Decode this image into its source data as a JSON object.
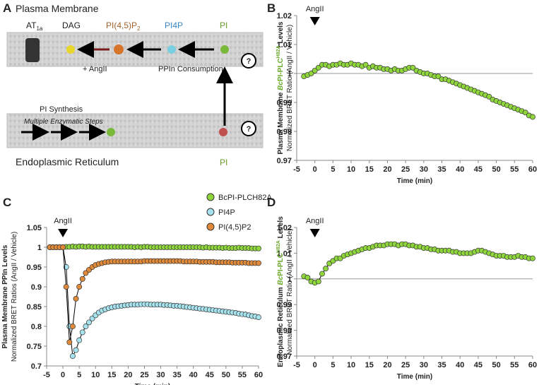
{
  "diagram": {
    "panel": "A",
    "pm": "Plasma Membrane",
    "at1a": [
      "AT",
      "1a"
    ],
    "dag": "DAG",
    "pip2": [
      "PI(4,5)P",
      "2"
    ],
    "pi4p": "PI4P",
    "pi_top": "PI",
    "angii": "+ AngII",
    "consumption": "PPIn Consumption",
    "synthesis": "PI Synthesis",
    "steps": "Multiple Enzymatic Steps",
    "er": "Endoplasmic Reticulum",
    "pi_bottom": "PI",
    "q1": "?",
    "q2": "?"
  },
  "chart_data": [
    {
      "type": "line",
      "panel": "B",
      "ylabel": [
        "Plasma Membrane ",
        "Bc",
        "PI-PLC",
        "H82A",
        " Levels"
      ],
      "ylabel2": "Normalized BRET Ratio (AngII / Vehicle)",
      "xlabel": "Time (min)",
      "annotation": {
        "text": "AngII",
        "x": 0
      },
      "hline": 1,
      "xlim": [
        -5,
        60
      ],
      "xticks": [
        -5,
        0,
        5,
        10,
        15,
        20,
        25,
        30,
        35,
        40,
        45,
        50,
        55,
        60
      ],
      "ylim": [
        0.97,
        1.02
      ],
      "yticks": [
        0.97,
        0.98,
        0.99,
        1,
        1.01,
        1.02
      ],
      "color": "#8ed63c",
      "x": [
        -3,
        -2,
        -1,
        0,
        1,
        2,
        3,
        4,
        5,
        6,
        7,
        8,
        9,
        10,
        11,
        12,
        13,
        14,
        15,
        16,
        17,
        18,
        19,
        20,
        21,
        22,
        23,
        24,
        25,
        26,
        27,
        28,
        29,
        30,
        31,
        32,
        33,
        34,
        35,
        36,
        37,
        38,
        39,
        40,
        41,
        42,
        43,
        44,
        45,
        46,
        47,
        48,
        49,
        50,
        51,
        52,
        53,
        54,
        55,
        56,
        57,
        58,
        59,
        60
      ],
      "values": [
        0.999,
        0.9995,
        1.0,
        1.001,
        1.002,
        1.003,
        1.003,
        1.0025,
        1.003,
        1.003,
        1.0035,
        1.003,
        1.003,
        1.0035,
        1.003,
        1.003,
        1.0025,
        1.003,
        1.002,
        1.0025,
        1.002,
        1.002,
        1.0015,
        1.0015,
        1.001,
        1.0015,
        1.001,
        1.001,
        1.0015,
        1.002,
        1.002,
        1.001,
        1.0005,
        1.0,
        1.0,
        0.9995,
        0.999,
        0.999,
        0.998,
        0.998,
        0.9975,
        0.997,
        0.9965,
        0.996,
        0.9955,
        0.995,
        0.9945,
        0.994,
        0.9935,
        0.993,
        0.9925,
        0.992,
        0.991,
        0.9905,
        0.99,
        0.9895,
        0.989,
        0.9885,
        0.988,
        0.9875,
        0.987,
        0.9865,
        0.9855,
        0.985
      ]
    },
    {
      "type": "line",
      "panel": "C",
      "ylabel": [
        "Plasma Membrane PPIn Levels"
      ],
      "ylabel2": "Normalized BRET Ratios (AngII / Vehicle)",
      "xlabel": "Time (min)",
      "annotation": {
        "text": "AngII",
        "x": 0
      },
      "xlim": [
        -5,
        60
      ],
      "xticks": [
        -5,
        0,
        5,
        10,
        15,
        20,
        25,
        30,
        35,
        40,
        45,
        50,
        55,
        60
      ],
      "ylim": [
        0.7,
        1.05
      ],
      "yticks": [
        0.7,
        0.75,
        0.8,
        0.85,
        0.9,
        0.95,
        1,
        1.05
      ],
      "x": [
        -4,
        -3,
        -2,
        -1,
        0,
        1,
        2,
        3,
        4,
        5,
        6,
        7,
        8,
        9,
        10,
        11,
        12,
        13,
        14,
        15,
        16,
        17,
        18,
        19,
        20,
        21,
        22,
        23,
        24,
        25,
        26,
        27,
        28,
        29,
        30,
        31,
        32,
        33,
        34,
        35,
        36,
        37,
        38,
        39,
        40,
        41,
        42,
        43,
        44,
        45,
        46,
        47,
        48,
        49,
        50,
        51,
        52,
        53,
        54,
        55,
        56,
        57,
        58,
        59,
        60
      ],
      "series": [
        {
          "name": "BcPI-PLCH82A",
          "color": "#8ed63c",
          "values": [
            1,
            1,
            1,
            1,
            1,
            1.001,
            1.001,
            1.002,
            1.001,
            1.002,
            1.002,
            1.001,
            1.002,
            1.001,
            1.001,
            1.001,
            1.001,
            1.001,
            1.001,
            1.001,
            1.001,
            1.001,
            1.001,
            1.001,
            1.001,
            1.001,
            1,
            1.001,
            1,
            1.001,
            1.001,
            1,
            1,
            1,
            1,
            1,
            1,
            1,
            1,
            1,
            1,
            1,
            1,
            1,
            1,
            1,
            1,
            0.999,
            1,
            0.999,
            0.999,
            0.999,
            0.999,
            0.998,
            0.999,
            0.998,
            0.998,
            0.998,
            0.999,
            0.998,
            0.998,
            0.998,
            0.997,
            0.997,
            0.997
          ]
        },
        {
          "name": "PI4P",
          "color": "#a6e3ee",
          "values": [
            1,
            1,
            1,
            1,
            1,
            0.95,
            0.8,
            0.725,
            0.74,
            0.765,
            0.785,
            0.8,
            0.81,
            0.82,
            0.828,
            0.835,
            0.84,
            0.843,
            0.846,
            0.848,
            0.85,
            0.851,
            0.852,
            0.853,
            0.854,
            0.855,
            0.855,
            0.855,
            0.856,
            0.856,
            0.856,
            0.855,
            0.855,
            0.855,
            0.855,
            0.854,
            0.854,
            0.853,
            0.852,
            0.852,
            0.851,
            0.85,
            0.849,
            0.848,
            0.847,
            0.846,
            0.845,
            0.844,
            0.843,
            0.842,
            0.841,
            0.84,
            0.839,
            0.838,
            0.837,
            0.836,
            0.835,
            0.834,
            0.832,
            0.831,
            0.83,
            0.828,
            0.826,
            0.825,
            0.823
          ]
        },
        {
          "name": "PI(4,5)P2",
          "color": "#e08a3a",
          "values": [
            1,
            1,
            1,
            1,
            1,
            0.9,
            0.76,
            0.8,
            0.87,
            0.9,
            0.92,
            0.935,
            0.943,
            0.95,
            0.955,
            0.958,
            0.96,
            0.962,
            0.963,
            0.964,
            0.964,
            0.964,
            0.964,
            0.964,
            0.964,
            0.964,
            0.964,
            0.964,
            0.964,
            0.965,
            0.965,
            0.965,
            0.965,
            0.965,
            0.965,
            0.965,
            0.965,
            0.965,
            0.965,
            0.965,
            0.965,
            0.964,
            0.964,
            0.964,
            0.964,
            0.964,
            0.963,
            0.963,
            0.963,
            0.963,
            0.963,
            0.962,
            0.962,
            0.962,
            0.962,
            0.962,
            0.961,
            0.961,
            0.961,
            0.961,
            0.961,
            0.96,
            0.96,
            0.96,
            0.96
          ]
        }
      ]
    },
    {
      "type": "line",
      "panel": "D",
      "ylabel": [
        "Endoplasmic Reticulum ",
        "Bc",
        "PI-PLC",
        "H82A",
        " Levels"
      ],
      "ylabel2": "Normalized BRET Ratio (AngII / Vehicle)",
      "xlabel": "Time (min)",
      "annotation": {
        "text": "AngII",
        "x": 0
      },
      "hline": 1,
      "xlim": [
        -5,
        60
      ],
      "xticks": [
        -5,
        0,
        5,
        10,
        15,
        20,
        25,
        30,
        35,
        40,
        45,
        50,
        55,
        60
      ],
      "ylim": [
        0.97,
        1.02
      ],
      "yticks": [
        0.97,
        0.98,
        0.99,
        1,
        1.01,
        1.02
      ],
      "color": "#8ed63c",
      "x": [
        -3,
        -2,
        -1,
        0,
        1,
        2,
        3,
        4,
        5,
        6,
        7,
        8,
        9,
        10,
        11,
        12,
        13,
        14,
        15,
        16,
        17,
        18,
        19,
        20,
        21,
        22,
        23,
        24,
        25,
        26,
        27,
        28,
        29,
        30,
        31,
        32,
        33,
        34,
        35,
        36,
        37,
        38,
        39,
        40,
        41,
        42,
        43,
        44,
        45,
        46,
        47,
        48,
        49,
        50,
        51,
        52,
        53,
        54,
        55,
        56,
        57,
        58,
        59,
        60
      ],
      "values": [
        1.001,
        1.0005,
        0.999,
        0.9985,
        0.999,
        1.002,
        1.004,
        1.006,
        1.007,
        1.008,
        1.008,
        1.009,
        1.0095,
        1.01,
        1.0105,
        1.011,
        1.0115,
        1.012,
        1.012,
        1.0125,
        1.013,
        1.013,
        1.013,
        1.0135,
        1.0135,
        1.0135,
        1.013,
        1.0135,
        1.0135,
        1.013,
        1.013,
        1.0125,
        1.0125,
        1.012,
        1.012,
        1.0115,
        1.0115,
        1.011,
        1.011,
        1.011,
        1.011,
        1.0105,
        1.0105,
        1.01,
        1.01,
        1.01,
        1.01,
        1.0105,
        1.011,
        1.011,
        1.0105,
        1.01,
        1.0095,
        1.009,
        1.009,
        1.009,
        1.0085,
        1.0085,
        1.0085,
        1.009,
        1.0085,
        1.0085,
        1.008,
        1.008
      ]
    }
  ]
}
